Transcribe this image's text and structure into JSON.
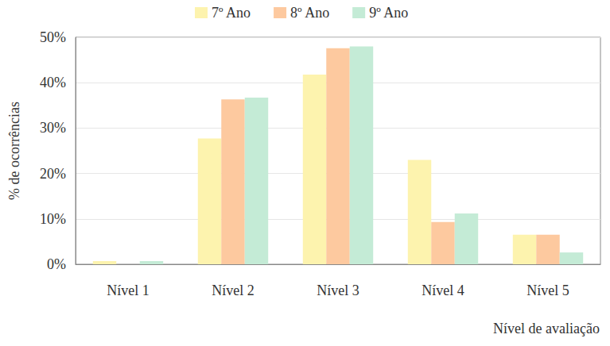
{
  "chart_data": {
    "type": "bar",
    "x_label": "Nível de avaliação",
    "y_label": "% de ocorrências",
    "categories": [
      "Nível 1",
      "Nível 2",
      "Nível 3",
      "Nível 4",
      "Nível 5"
    ],
    "series": [
      {
        "name": "7º Ano",
        "color": "#fdf3ae",
        "values": [
          0.7,
          27.7,
          41.8,
          23.0,
          6.5
        ]
      },
      {
        "name": "8º Ano",
        "color": "#fdc99f",
        "values": [
          0,
          36.3,
          47.6,
          9.3,
          6.5
        ]
      },
      {
        "name": "9º Ano",
        "color": "#c4ebd6",
        "values": [
          0.7,
          36.7,
          48.0,
          11.2,
          2.6
        ]
      }
    ],
    "ylim": [
      0,
      50
    ],
    "yticks": [
      {
        "value": 0,
        "label": "0%"
      },
      {
        "value": 10,
        "label": "10%"
      },
      {
        "value": 20,
        "label": "20%"
      },
      {
        "value": 30,
        "label": "30%"
      },
      {
        "value": 40,
        "label": "40%"
      },
      {
        "value": 50,
        "label": "50%"
      }
    ],
    "grid": true,
    "legend": "top"
  }
}
